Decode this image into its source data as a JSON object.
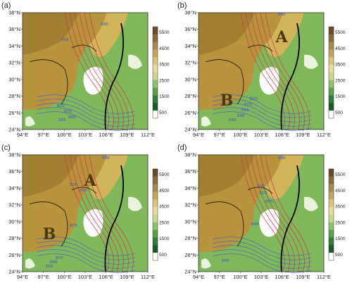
{
  "panels": [
    {
      "label": "(a)",
      "markers": [],
      "contour_labels": [
        "3080",
        "3065",
        "3070",
        "3075",
        "3060",
        "3085"
      ]
    },
    {
      "label": "(b)",
      "markers": [
        "A",
        "B"
      ],
      "contour_labels": [
        "3080",
        "3070",
        "3075",
        "3065",
        "3085",
        "3060"
      ]
    },
    {
      "label": "(c)",
      "markers": [
        "A",
        "B"
      ],
      "contour_labels": [
        "3080",
        "3100",
        "3070",
        "3075",
        "3070",
        "3065",
        "3060"
      ]
    },
    {
      "label": "(d)",
      "markers": [],
      "contour_labels": [
        "3080",
        "3100",
        "3070",
        "3080",
        "3075",
        "3060"
      ]
    }
  ],
  "axes": {
    "lat_ticks": [
      "38°N",
      "36°N",
      "34°N",
      "32°N",
      "30°N",
      "28°N",
      "26°N",
      "24°N"
    ],
    "lon_ticks": [
      "94°E",
      "97°E",
      "100°E",
      "103°E",
      "106°E",
      "109°E",
      "112°E"
    ]
  },
  "colorbar": {
    "ticks": [
      "5500",
      "4500",
      "3500",
      "2500",
      "1500",
      "500"
    ],
    "colors": [
      "#6b4a2a",
      "#8a6a3a",
      "#a88a4a",
      "#c4a65a",
      "#d9c47a",
      "#e8dc9a",
      "#c9d98a",
      "#8fc06a",
      "#5aa04a",
      "#2f7d3a",
      "#1a5a2a",
      "#ffffff"
    ]
  },
  "map_colors": {
    "plateau": "#b8943c",
    "highland": "#d2b45a",
    "lowland_green": "#7fb85a",
    "basin_white": "#ffffff",
    "contour_red": "#d0344a",
    "contour_blue": "#3b5fd0",
    "border_black": "#111111"
  }
}
